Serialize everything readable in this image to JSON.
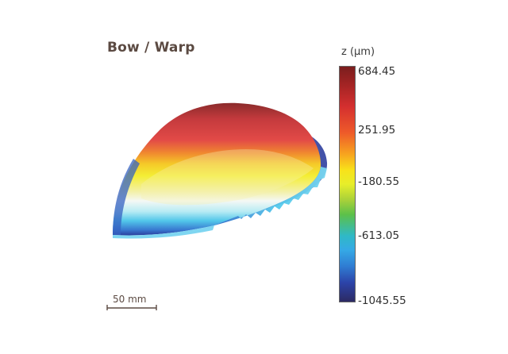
{
  "title": "Bow / Warp",
  "colorbar": {
    "label": "z (µm)",
    "ticks": [
      "684.45",
      "251.95",
      "-180.55",
      "-613.05",
      "-1045.55"
    ],
    "max": 684.45,
    "min": -1045.55
  },
  "scale_bar": {
    "label": "50 mm"
  },
  "colors": {
    "title": "#5b4a42",
    "top": "#8b2323",
    "red": "#d83a3a",
    "yellow": "#f3e32a",
    "white": "#f4f7f4",
    "cyan": "#43c7e8",
    "blue": "#2d46a6"
  }
}
